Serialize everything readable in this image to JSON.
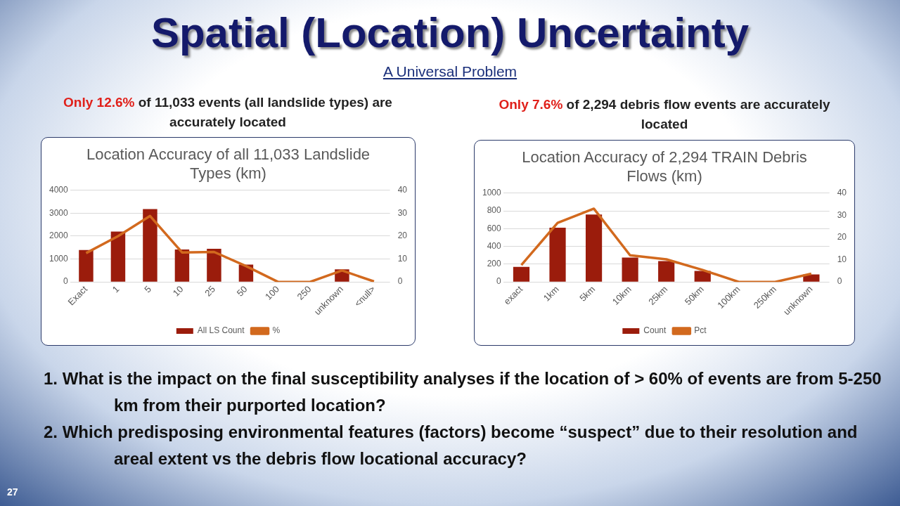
{
  "chart_data": [
    {
      "type": "bar",
      "title": "Location Accuracy of all 11,033 Landslide Types (km)",
      "categories": [
        "Exact",
        "1",
        "5",
        "10",
        "25",
        "50",
        "100",
        "250",
        "unknown",
        "<null>"
      ],
      "series": [
        {
          "name": "All LS Count",
          "color": "#9b1c0c",
          "values": [
            1390,
            2200,
            3180,
            1420,
            1450,
            760,
            0,
            0,
            550,
            null
          ]
        },
        {
          "name": "%",
          "type": "line",
          "axis": "y2",
          "color": "#d2691e",
          "values": [
            12.6,
            20,
            28.8,
            12.9,
            13.1,
            6.9,
            0,
            0,
            5,
            0.2
          ]
        }
      ],
      "ylim": [
        0,
        4000
      ],
      "yticks": [
        0,
        1000,
        2000,
        3000,
        4000
      ],
      "y2lim": [
        0,
        40
      ],
      "y2ticks": [
        0,
        10,
        20,
        30,
        40
      ],
      "grid": "y",
      "legend": "bottom",
      "marker": "none",
      "annotations": [
        "Spatial (Location) Uncertainty",
        "A Universal Problem",
        "Only 12.6% of 11,033 events (all landslide types) are accurately located",
        "1.  What is the impact on the final susceptibility analyses if the location of > 60% of events are from 5-250 km from  their  purported location?",
        "2.  Which predisposing environmental features (factors) become “suspect” due to their resolution and areal extent vs the debris flow locational accuracy?",
        "27"
      ]
    },
    {
      "type": "bar",
      "title": "Location Accuracy of 2,294 TRAIN Debris Flows (km)",
      "categories": [
        "exact",
        "1km",
        "5km",
        "10km",
        "25km",
        "50km",
        "100km",
        "250km",
        "unknown"
      ],
      "series": [
        {
          "name": "Count",
          "color": "#9b1c0c",
          "values": [
            170,
            610,
            760,
            275,
            235,
            125,
            0,
            0,
            85
          ]
        },
        {
          "name": "Pct",
          "type": "line",
          "axis": "y2",
          "color": "#d2691e",
          "values": [
            7.6,
            26.6,
            33,
            12,
            10.2,
            5.4,
            0,
            0,
            3.7
          ]
        }
      ],
      "ylim": [
        0,
        1000
      ],
      "yticks": [
        0,
        200,
        400,
        600,
        800,
        1000
      ],
      "y2lim": [
        0,
        40
      ],
      "y2ticks": [
        0,
        10,
        20,
        30,
        40
      ],
      "grid": "y",
      "legend": "bottom",
      "marker": "none",
      "annotations": [
        "Only 7.6% of 2,294 debris flow events are accurately located"
      ]
    }
  ]
}
